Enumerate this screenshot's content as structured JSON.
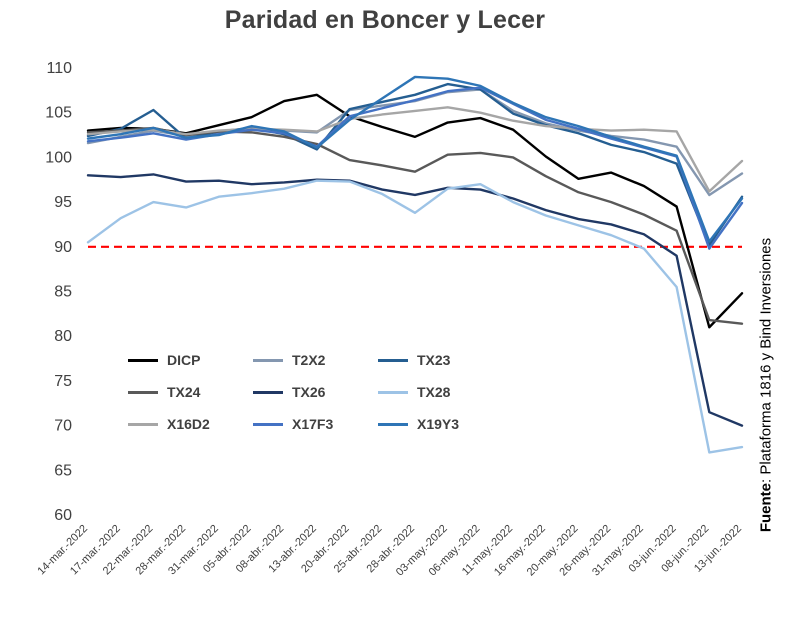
{
  "title": "Paridad en Boncer y Lecer",
  "source": {
    "label": "Fuente",
    "text": ": Plataforma 1816 y  Bind Inversiones"
  },
  "chart_data": {
    "type": "line",
    "title": "Paridad en Boncer y Lecer",
    "xlabel": "",
    "ylabel": "",
    "ylim": [
      60,
      110
    ],
    "yticks": [
      60,
      65,
      70,
      75,
      80,
      85,
      90,
      95,
      100,
      105,
      110
    ],
    "grid": false,
    "legend_position": "inside-bottom-left",
    "reference_line": {
      "value": 90,
      "color": "#FF0000",
      "style": "dashed"
    },
    "categories": [
      "14-mar.-2022",
      "17-mar.-2022",
      "22-mar.-2022",
      "28-mar.-2022",
      "31-mar.-2022",
      "05-abr.-2022",
      "08-abr.-2022",
      "13-abr.-2022",
      "20-abr.-2022",
      "25-abr.-2022",
      "28-abr.-2022",
      "03-may.-2022",
      "06-may.-2022",
      "11-may.-2022",
      "16-may.-2022",
      "20-may.-2022",
      "26-may.-2022",
      "31-may.-2022",
      "03-jun.-2022",
      "08-jun.-2022",
      "13-jun.-2022"
    ],
    "series": [
      {
        "name": "DICP",
        "color": "#000000",
        "values": [
          103.0,
          103.3,
          103.2,
          102.7,
          103.6,
          104.5,
          106.3,
          107.0,
          104.6,
          103.4,
          102.3,
          103.9,
          104.4,
          103.1,
          100.1,
          97.6,
          98.3,
          96.8,
          94.5,
          81.0,
          84.8
        ]
      },
      {
        "name": "T2X2",
        "color": "#8497B0",
        "values": [
          101.6,
          102.3,
          103.0,
          102.4,
          102.8,
          103.2,
          103.0,
          102.8,
          105.3,
          105.8,
          106.3,
          107.3,
          107.6,
          105.2,
          103.8,
          103.0,
          102.4,
          102.0,
          101.2,
          95.8,
          98.2
        ]
      },
      {
        "name": "TX23",
        "color": "#255E91",
        "values": [
          102.4,
          103.2,
          105.3,
          102.1,
          102.9,
          103.3,
          102.6,
          100.9,
          105.4,
          106.2,
          107.0,
          108.2,
          107.6,
          104.9,
          103.6,
          102.7,
          101.4,
          100.6,
          99.3,
          90.2,
          95.6
        ]
      },
      {
        "name": "TX24",
        "color": "#595959",
        "values": [
          102.8,
          103.0,
          103.3,
          102.5,
          102.9,
          102.8,
          102.3,
          101.5,
          99.7,
          99.1,
          98.4,
          100.3,
          100.5,
          100.0,
          97.9,
          96.1,
          95.0,
          93.6,
          91.8,
          81.8,
          81.4
        ]
      },
      {
        "name": "TX26",
        "color": "#203864",
        "values": [
          98.0,
          97.8,
          98.1,
          97.3,
          97.4,
          97.0,
          97.2,
          97.5,
          97.4,
          96.4,
          95.8,
          96.6,
          96.4,
          95.4,
          94.1,
          93.1,
          92.5,
          91.4,
          89.0,
          71.5,
          70.0
        ]
      },
      {
        "name": "TX28",
        "color": "#9DC3E6",
        "values": [
          90.5,
          93.2,
          95.0,
          94.4,
          95.6,
          96.0,
          96.5,
          97.4,
          97.3,
          95.9,
          93.8,
          96.5,
          97.0,
          95.0,
          93.5,
          92.4,
          91.3,
          89.8,
          85.5,
          67.0,
          67.6
        ]
      },
      {
        "name": "X16D2",
        "color": "#A6A6A6",
        "values": [
          102.6,
          102.9,
          103.1,
          102.6,
          103.0,
          103.2,
          103.1,
          102.9,
          104.3,
          104.8,
          105.2,
          105.6,
          105.0,
          104.1,
          103.5,
          103.2,
          103.0,
          103.1,
          102.9,
          96.2,
          99.6
        ]
      },
      {
        "name": "X17F3",
        "color": "#4472C4",
        "values": [
          101.8,
          102.2,
          102.7,
          102.0,
          102.6,
          103.1,
          102.7,
          101.2,
          104.6,
          105.5,
          106.4,
          107.4,
          107.8,
          106.0,
          104.2,
          103.2,
          102.1,
          101.1,
          100.1,
          89.8,
          94.9
        ]
      },
      {
        "name": "X19Y3",
        "color": "#2E75B6",
        "values": [
          102.1,
          102.6,
          103.3,
          102.2,
          102.5,
          103.5,
          102.9,
          101.1,
          104.2,
          106.6,
          109.0,
          108.8,
          108.0,
          106.1,
          104.5,
          103.5,
          102.3,
          101.2,
          100.2,
          90.6,
          95.4
        ]
      }
    ]
  }
}
